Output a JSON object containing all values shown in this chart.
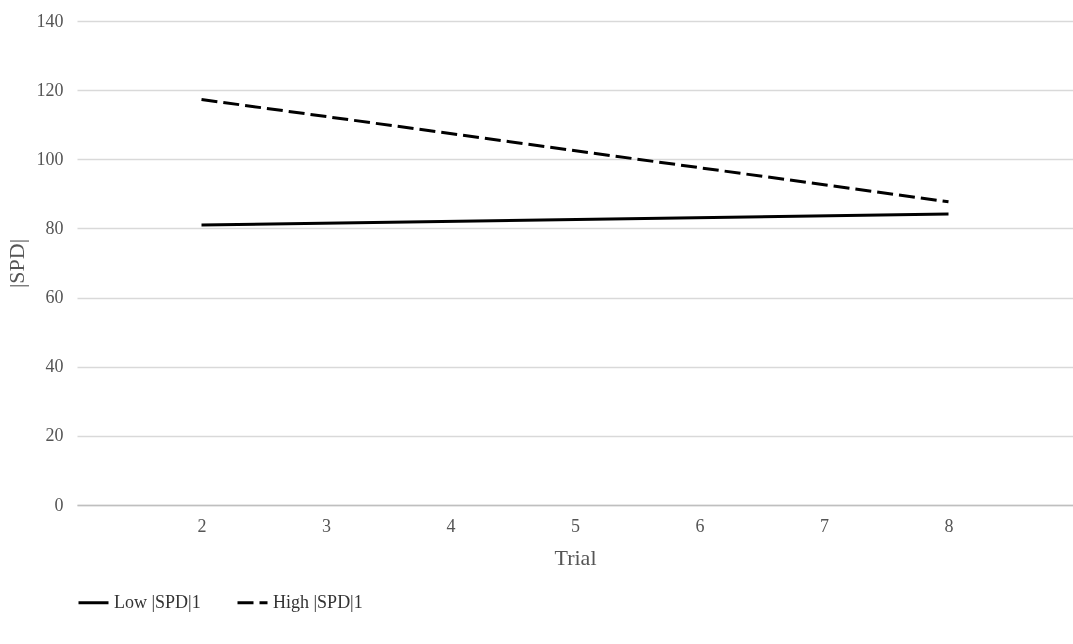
{
  "chart_data": {
    "type": "line",
    "xlabel": "Trial",
    "ylabel": "|SPD|",
    "x": [
      2,
      8
    ],
    "xlim": [
      1,
      9
    ],
    "xticks": [
      2,
      3,
      4,
      5,
      6,
      7,
      8
    ],
    "ylim": [
      0,
      140
    ],
    "yticks": [
      0,
      20,
      40,
      60,
      80,
      100,
      120,
      140
    ],
    "grid": "y",
    "legend": "bottom",
    "marker": "none",
    "series": [
      {
        "name": "Low |SPD|1",
        "color": "#000000",
        "line_style": "solid",
        "values": [
          81,
          84.2
        ]
      },
      {
        "name": "High |SPD|1",
        "color": "#000000",
        "line_style": "dashed",
        "values": [
          117.3,
          87.7
        ]
      }
    ]
  }
}
